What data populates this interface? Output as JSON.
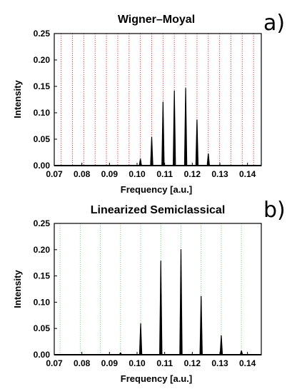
{
  "chart_data": [
    {
      "type": "line",
      "panel_label": "a)",
      "title": "Wigner–Moyal",
      "xlabel": "Frequency [a.u.]",
      "ylabel": "Intensity",
      "xlim": [
        0.07,
        0.145
      ],
      "ylim": [
        0,
        0.25
      ],
      "xticks": [
        "0.07",
        "0.08",
        "0.09",
        "0.10",
        "0.11",
        "0.12",
        "0.13",
        "0.14"
      ],
      "yticks": [
        "0.00",
        "0.05",
        "0.10",
        "0.15",
        "0.20",
        "0.25"
      ],
      "reference_lines": {
        "color": "#e8403a",
        "style": "dotted",
        "x": [
          0.0725,
          0.0766,
          0.0807,
          0.0848,
          0.0889,
          0.093,
          0.0971,
          0.1012,
          0.1053,
          0.1094,
          0.1135,
          0.1176,
          0.1217,
          0.1258,
          0.1299,
          0.134,
          0.1381,
          0.1422
        ]
      },
      "peaks": {
        "color": "#000000",
        "x": [
          0.1012,
          0.1053,
          0.1094,
          0.1135,
          0.1176,
          0.1217,
          0.1258
        ],
        "y": [
          0.013,
          0.054,
          0.121,
          0.142,
          0.147,
          0.087,
          0.023
        ]
      }
    },
    {
      "type": "line",
      "panel_label": "b)",
      "title": "Linearized Semiclassical",
      "xlabel": "Frequency [a.u.]",
      "ylabel": "Intensity",
      "xlim": [
        0.07,
        0.145
      ],
      "ylim": [
        0,
        0.25
      ],
      "xticks": [
        "0.07",
        "0.08",
        "0.09",
        "0.10",
        "0.11",
        "0.12",
        "0.13",
        "0.14"
      ],
      "yticks": [
        "0.00",
        "0.05",
        "0.10",
        "0.15",
        "0.20",
        "0.25"
      ],
      "reference_lines": {
        "color": "#7fd97f",
        "style": "dotted",
        "x": [
          0.0721,
          0.0794,
          0.0867,
          0.094,
          0.1013,
          0.1086,
          0.1159,
          0.1232,
          0.1305,
          0.1378
        ]
      },
      "peaks": {
        "color": "#000000",
        "x": [
          0.094,
          0.1013,
          0.1086,
          0.1159,
          0.1232,
          0.1305,
          0.1378
        ],
        "y": [
          0.004,
          0.06,
          0.179,
          0.201,
          0.112,
          0.037,
          0.008
        ]
      }
    }
  ]
}
